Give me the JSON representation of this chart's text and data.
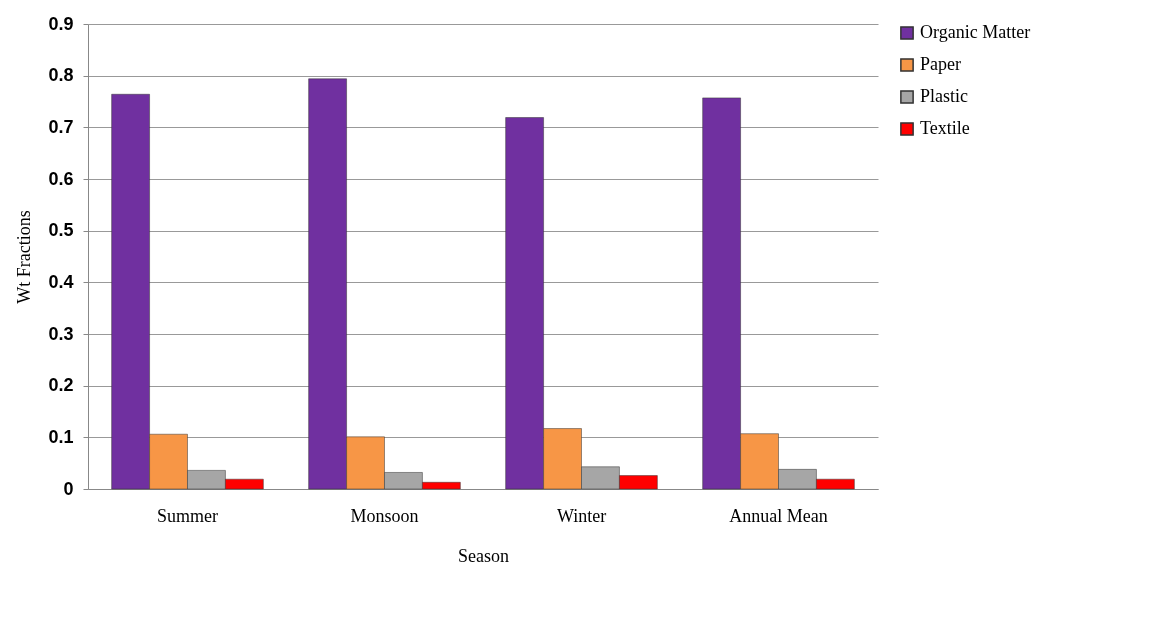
{
  "chart_data": {
    "type": "bar",
    "xlabel": "Season",
    "ylabel": "Wt Fractions",
    "categories": [
      "Summer",
      "Monsoon",
      "Winter",
      "Annual Mean"
    ],
    "series": [
      {
        "name": "Organic Matter",
        "color": "#7030a0",
        "values": [
          0.764,
          0.794,
          0.719,
          0.757
        ]
      },
      {
        "name": "Paper",
        "color": "#f79646",
        "values": [
          0.106,
          0.101,
          0.117,
          0.107
        ]
      },
      {
        "name": "Plastic",
        "color": "#a6a6a6",
        "values": [
          0.036,
          0.032,
          0.043,
          0.038
        ]
      },
      {
        "name": "Textile",
        "color": "#ff0000",
        "values": [
          0.019,
          0.013,
          0.026,
          0.019
        ]
      }
    ],
    "ylim": [
      0,
      0.9
    ],
    "yticks": [
      0,
      0.1,
      0.2,
      0.3,
      0.4,
      0.5,
      0.6,
      0.7,
      0.8,
      0.9
    ],
    "grid": "y",
    "legend": "right"
  }
}
